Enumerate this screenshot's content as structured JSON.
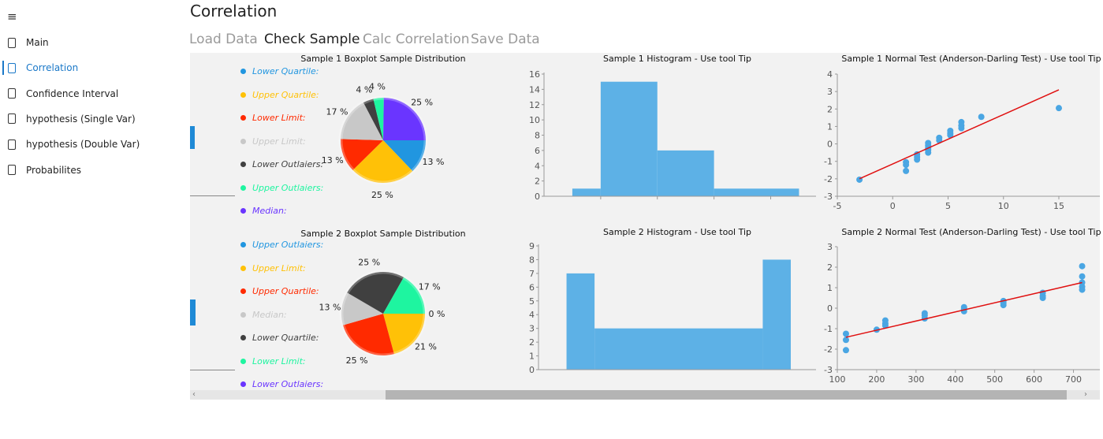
{
  "sidebar": {
    "menu_icon": "hamburger-icon",
    "items": [
      {
        "label": "Main",
        "icon": "page-icon",
        "selected": false
      },
      {
        "label": "Correlation",
        "icon": "page-icon",
        "selected": true
      },
      {
        "label": "Confidence Interval",
        "icon": "page-icon",
        "selected": false
      },
      {
        "label": "hypothesis (Single Var)",
        "icon": "page-icon",
        "selected": false
      },
      {
        "label": "hypothesis (Double Var)",
        "icon": "page-icon",
        "selected": false
      },
      {
        "label": "Probabilites",
        "icon": "page-icon",
        "selected": false
      }
    ]
  },
  "header": {
    "title": "Correlation"
  },
  "tabs": [
    {
      "label": "Load Data",
      "active": false
    },
    {
      "label": "Check Sample",
      "active": true
    },
    {
      "label": "Calc Correlation",
      "active": false
    },
    {
      "label": "Save Data",
      "active": false
    }
  ],
  "colors": {
    "accent": "#1a78c8",
    "slices": [
      "#2196e0",
      "#ffc107",
      "#ff2a00",
      "#c8c8c8",
      "#404040",
      "#1ef5a0",
      "#6a35ff"
    ],
    "histogram": "#5db1e6",
    "points": "#4aa6e3",
    "fit_line": "#e01010"
  },
  "chart_data": [
    {
      "type": "pie",
      "title": "Sample 1 Boxplot Sample Distribution",
      "legend_placement": "left",
      "slices": [
        {
          "name": "Lower Quartile:",
          "value": 13,
          "label": "13 %"
        },
        {
          "name": "Upper Quartile:",
          "value": 25,
          "label": "25 %"
        },
        {
          "name": "Lower Limit:",
          "value": 13,
          "label": "13 %"
        },
        {
          "name": "Upper Limit:",
          "value": 17,
          "label": "17 %"
        },
        {
          "name": "Lower Outlaiers:",
          "value": 4,
          "label": "4 %"
        },
        {
          "name": "Upper Outlaiers:",
          "value": 4,
          "label": "4 %"
        },
        {
          "name": "Median:",
          "value": 25,
          "label": "25 %"
        }
      ]
    },
    {
      "type": "bar",
      "title": "Sample 1 Histogram - Use tool Tip",
      "ylim": [
        0,
        16
      ],
      "yticks": [
        "0",
        "2",
        "4",
        "6",
        "8",
        "10",
        "12",
        "14",
        "16"
      ],
      "bins": [
        {
          "start": 0.5,
          "end": 1,
          "count": 1
        },
        {
          "start": 1,
          "end": 2,
          "count": 15
        },
        {
          "start": 2,
          "end": 3,
          "count": 6
        },
        {
          "start": 3,
          "end": 4.5,
          "count": 1
        }
      ],
      "xlim": [
        0,
        4.8
      ]
    },
    {
      "type": "scatter",
      "title": "Sample 1 Normal Test  (Anderson-Darling Test) - Use tool Tip",
      "xlim": [
        -5,
        18.7
      ],
      "ylim": [
        -3,
        4
      ],
      "xticks": [
        "-5",
        "0",
        "5",
        "10",
        "15"
      ],
      "yticks": [
        "-3",
        "-2",
        "-1",
        "0",
        "1",
        "2",
        "3",
        "4"
      ],
      "points": [
        [
          -3,
          -2.05
        ],
        [
          1.2,
          -1.05
        ],
        [
          1.2,
          -1.2
        ],
        [
          1.2,
          -1.55
        ],
        [
          2.2,
          -0.6
        ],
        [
          2.2,
          -0.75
        ],
        [
          2.2,
          -0.9
        ],
        [
          3.2,
          0.05
        ],
        [
          3.2,
          -0.1
        ],
        [
          3.2,
          -0.25
        ],
        [
          3.2,
          -0.35
        ],
        [
          3.2,
          -0.5
        ],
        [
          4.2,
          0.35
        ],
        [
          4.2,
          0.2
        ],
        [
          5.2,
          0.75
        ],
        [
          5.2,
          0.6
        ],
        [
          5.2,
          0.5
        ],
        [
          6.2,
          1.25
        ],
        [
          6.2,
          1.05
        ],
        [
          6.2,
          0.9
        ],
        [
          8,
          1.55
        ],
        [
          15,
          2.05
        ]
      ],
      "fit_line": [
        [
          -3,
          -2.0
        ],
        [
          15,
          3.1
        ]
      ]
    },
    {
      "type": "pie",
      "title": "Sample 2 Boxplot Sample Distribution",
      "legend_placement": "left",
      "slices": [
        {
          "name": "Upper Outlaiers:",
          "value": 0,
          "label": "0 %"
        },
        {
          "name": "Upper Limit:",
          "value": 21,
          "label": "21 %"
        },
        {
          "name": "Upper Quartile:",
          "value": 25,
          "label": "25 %"
        },
        {
          "name": "Median:",
          "value": 13,
          "label": "13 %"
        },
        {
          "name": "Lower Quartile:",
          "value": 25,
          "label": "25 %"
        },
        {
          "name": "Lower Limit:",
          "value": 17,
          "label": "17 %"
        },
        {
          "name": "Lower Outlaiers:",
          "value": 0,
          "label": ""
        }
      ]
    },
    {
      "type": "bar",
      "title": "Sample 2 Histogram - Use tool Tip",
      "ylim": [
        0,
        9
      ],
      "yticks": [
        "0",
        "1",
        "2",
        "3",
        "4",
        "5",
        "6",
        "7",
        "8",
        "9"
      ],
      "bins": [
        {
          "start": 1,
          "end": 2,
          "count": 7
        },
        {
          "start": 2,
          "end": 8,
          "count": 3
        },
        {
          "start": 8,
          "end": 9,
          "count": 8
        }
      ],
      "xlim": [
        0,
        9.9
      ]
    },
    {
      "type": "scatter",
      "title": "Sample 2 Normal Test  (Anderson-Darling Test) - Use tool Tip",
      "xlim": [
        100,
        767
      ],
      "ylim": [
        -3,
        3
      ],
      "xticks": [
        "100",
        "200",
        "300",
        "400",
        "500",
        "600",
        "700"
      ],
      "yticks": [
        "-3",
        "-2",
        "-1",
        "0",
        "1",
        "2",
        "3"
      ],
      "points": [
        [
          122,
          -1.25
        ],
        [
          122,
          -1.55
        ],
        [
          122,
          -2.05
        ],
        [
          200,
          -1.05
        ],
        [
          222,
          -0.6
        ],
        [
          222,
          -0.75
        ],
        [
          222,
          -0.85
        ],
        [
          322,
          -0.25
        ],
        [
          322,
          -0.35
        ],
        [
          322,
          -0.5
        ],
        [
          422,
          0.05
        ],
        [
          422,
          -0.05
        ],
        [
          422,
          -0.15
        ],
        [
          522,
          0.35
        ],
        [
          522,
          0.25
        ],
        [
          522,
          0.15
        ],
        [
          622,
          0.75
        ],
        [
          622,
          0.6
        ],
        [
          622,
          0.5
        ],
        [
          722,
          2.05
        ],
        [
          722,
          1.55
        ],
        [
          722,
          1.25
        ],
        [
          722,
          1.05
        ],
        [
          722,
          0.9
        ]
      ],
      "fit_line": [
        [
          122,
          -1.42
        ],
        [
          722,
          1.25
        ]
      ]
    }
  ]
}
